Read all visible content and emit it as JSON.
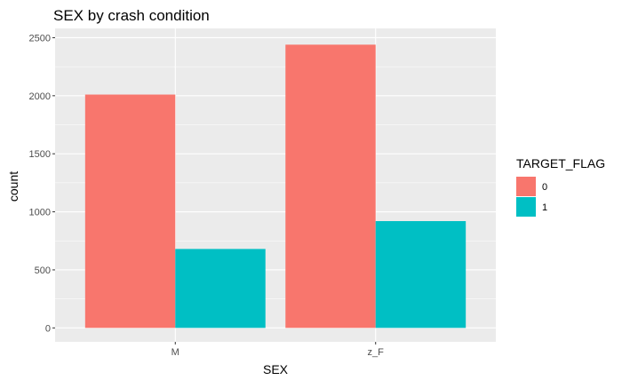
{
  "chart_data": {
    "type": "bar",
    "title": "SEX by crash condition",
    "xlabel": "SEX",
    "ylabel": "count",
    "categories": [
      "M",
      "z_F"
    ],
    "series": [
      {
        "name": "0",
        "values": [
          2010,
          2440
        ],
        "color": "#F8766D"
      },
      {
        "name": "1",
        "values": [
          680,
          920
        ],
        "color": "#00BFC4"
      }
    ],
    "ylim": [
      -120,
      2580
    ],
    "yticks": [
      0,
      500,
      1000,
      1500,
      2000,
      2500
    ],
    "grid": true,
    "legend": {
      "title": "TARGET_FLAG",
      "placement": "right"
    },
    "panel_background": "#EBEBEB",
    "grid_color": "#FFFFFF"
  }
}
